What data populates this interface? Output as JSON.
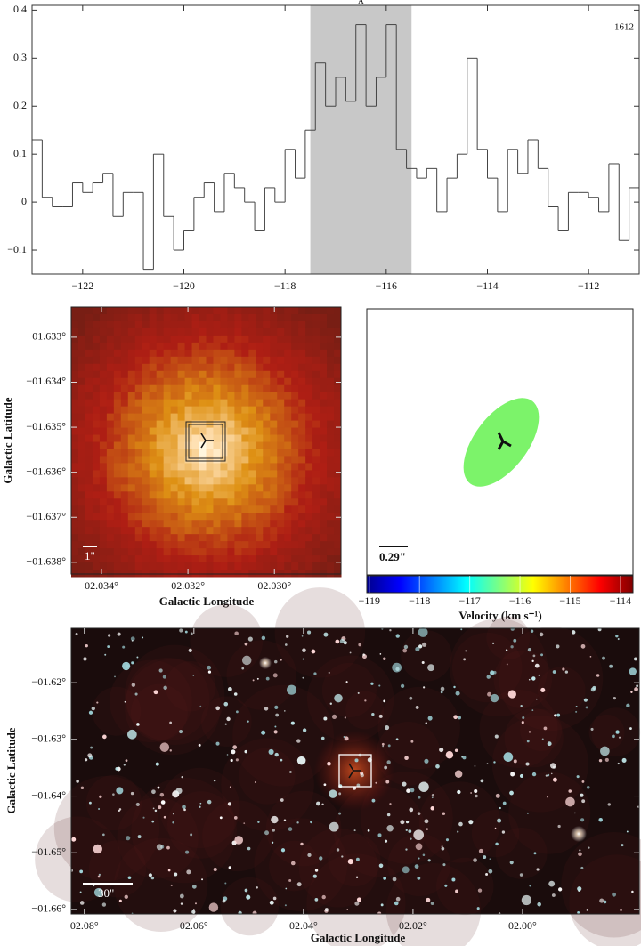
{
  "chart_data": [
    {
      "type": "step",
      "annotation": "A",
      "label": "1612",
      "highlight": [
        -117.5,
        -115.5
      ],
      "x": [
        -123,
        -122.8,
        -122.6,
        -122.4,
        -122.2,
        -122,
        -121.8,
        -121.6,
        -121.4,
        -121.2,
        -121,
        -120.8,
        -120.6,
        -120.4,
        -120.2,
        -120,
        -119.8,
        -119.6,
        -119.4,
        -119.2,
        -119,
        -118.8,
        -118.6,
        -118.4,
        -118.2,
        -118,
        -117.8,
        -117.6,
        -117.4,
        -117.2,
        -117,
        -116.8,
        -116.6,
        -116.4,
        -116.2,
        -116,
        -115.8,
        -115.6,
        -115.4,
        -115.2,
        -115,
        -114.8,
        -114.6,
        -114.4,
        -114.2,
        -114,
        -113.8,
        -113.6,
        -113.4,
        -113.2,
        -113,
        -112.8,
        -112.6,
        -112.4,
        -112.2,
        -112,
        -111.8,
        -111.6,
        -111.4,
        -111.2
      ],
      "values": [
        0.13,
        0.01,
        -0.01,
        -0.01,
        0.04,
        0.02,
        0.04,
        0.06,
        -0.03,
        0.02,
        0.02,
        -0.14,
        0.1,
        -0.03,
        -0.1,
        -0.06,
        0.01,
        0.04,
        -0.02,
        0.06,
        0.03,
        0.0,
        -0.06,
        0.03,
        0.0,
        0.11,
        0.05,
        0.15,
        0.29,
        0.2,
        0.26,
        0.21,
        0.37,
        0.2,
        0.26,
        0.37,
        0.11,
        0.07,
        0.05,
        0.07,
        -0.02,
        0.05,
        0.1,
        0.3,
        0.11,
        0.05,
        -0.02,
        0.11,
        0.06,
        0.13,
        0.07,
        -0.01,
        -0.06,
        0.02,
        0.02,
        0.01,
        -0.02,
        0.08,
        -0.08,
        0.03
      ],
      "color": "#444444",
      "xlim": [
        -123,
        -111
      ],
      "ylim": [
        -0.15,
        0.41
      ],
      "xticks": [
        {
          "value": -122,
          "label": "−122"
        },
        {
          "value": -120,
          "label": "−120"
        },
        {
          "value": -118,
          "label": "−118"
        },
        {
          "value": -116,
          "label": "−116"
        },
        {
          "value": -114,
          "label": "−114"
        },
        {
          "value": -112,
          "label": "−112"
        }
      ],
      "yticks": [
        {
          "value": -0.1,
          "label": "−0.1"
        },
        0,
        0.1,
        0.2,
        0.3,
        0.4
      ]
    },
    {
      "type": "image",
      "xlabel": "Galactic Longitude",
      "ylabel": "Galactic Latitude",
      "scale_label": "1\"",
      "xlim": [
        2.0347,
        2.02846
      ],
      "ylim": [
        -1.63826,
        -1.63233
      ],
      "xticks": [
        {
          "value": 2.034,
          "label": "02.034°"
        },
        {
          "value": 2.032,
          "label": "02.032°"
        },
        {
          "value": 2.03,
          "label": "02.030°"
        }
      ],
      "yticks": [
        {
          "value": -1.633,
          "label": "−01.633°"
        },
        {
          "value": -1.634,
          "label": "−01.634°"
        },
        {
          "value": -1.635,
          "label": "−01.635°"
        },
        {
          "value": -1.636,
          "label": "−01.636°"
        },
        {
          "value": -1.637,
          "label": "−01.637°"
        },
        {
          "value": -1.638,
          "label": "−01.638°"
        }
      ]
    },
    {
      "type": "ellipse-map",
      "scale_label": "0.29\"",
      "xlabel": "Velocity (km s⁻¹)",
      "clim": [
        -119.05,
        -113.75
      ],
      "cticks": [
        {
          "value": -119,
          "label": "−119"
        },
        {
          "value": -118,
          "label": "−118"
        },
        {
          "value": -117,
          "label": "−117"
        },
        {
          "value": -116,
          "label": "−116"
        },
        {
          "value": -115,
          "label": "−115"
        },
        {
          "value": -114,
          "label": "−114"
        }
      ]
    },
    {
      "type": "starfield",
      "xlabel": "Galactic Longitude",
      "ylabel": "Galactic Latitude",
      "scale_label": "30\"",
      "xlim": [
        2.0824,
        1.9787
      ],
      "ylim": [
        -1.6608,
        -1.6104
      ],
      "xticks": [
        {
          "value": 2.08,
          "label": "02.08°"
        },
        {
          "value": 2.06,
          "label": "02.06°"
        },
        {
          "value": 2.04,
          "label": "02.04°"
        },
        {
          "value": 2.02,
          "label": "02.02°"
        },
        {
          "value": 2.0,
          "label": "02.00°"
        }
      ],
      "yticks": [
        {
          "value": -1.62,
          "label": "−01.62°"
        },
        {
          "value": -1.63,
          "label": "−01.63°"
        },
        {
          "value": -1.64,
          "label": "−01.64°"
        },
        {
          "value": -1.65,
          "label": "−01.65°"
        },
        {
          "value": -1.66,
          "label": "−01.66°"
        }
      ]
    }
  ]
}
